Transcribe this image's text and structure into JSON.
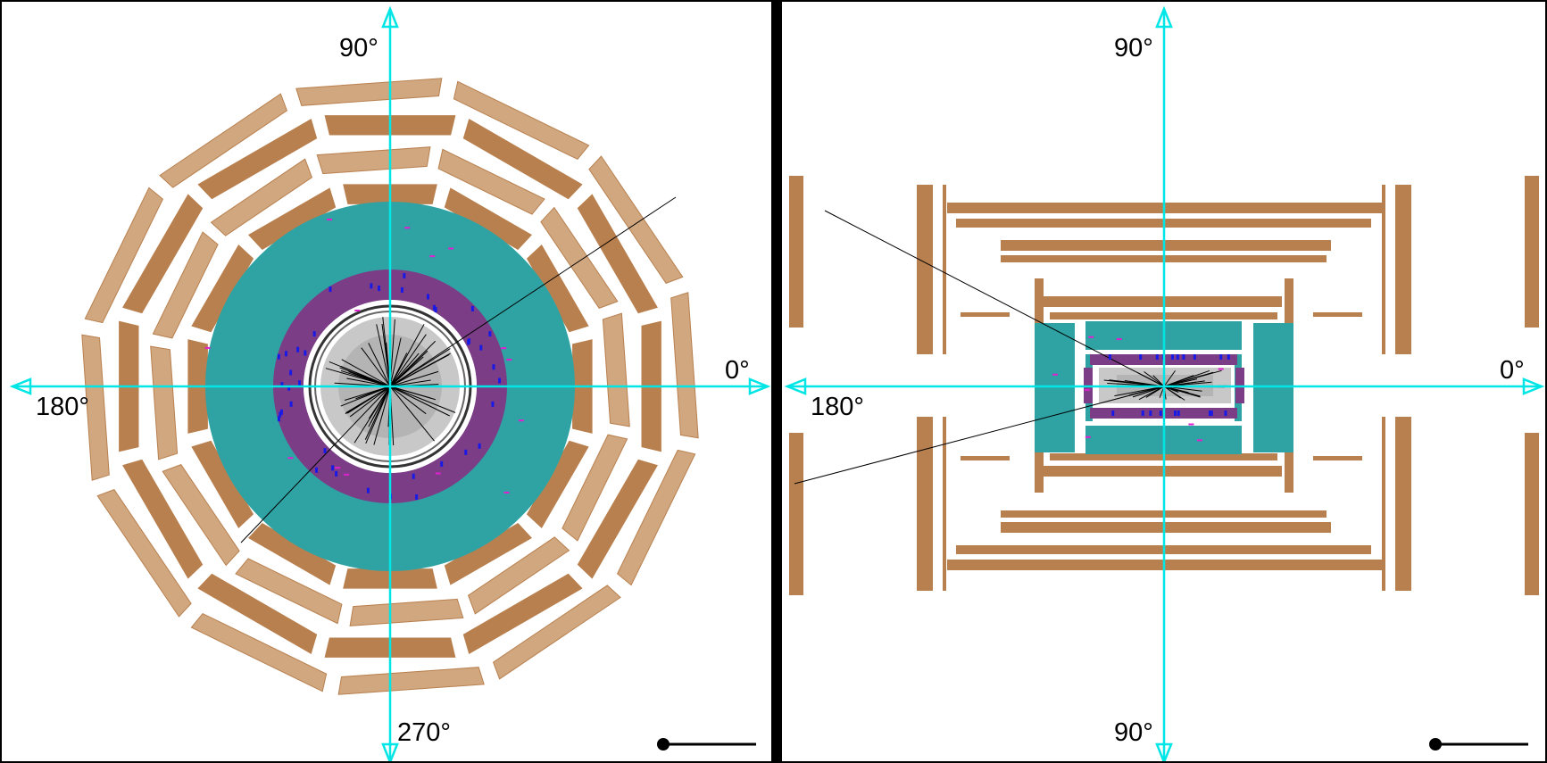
{
  "left_view": {
    "labels": {
      "top": "90°",
      "right": "0°",
      "left": "180°",
      "bottom": "270°"
    }
  },
  "right_view": {
    "labels": {
      "top": "90°",
      "right": "0°",
      "left": "180°",
      "bottom": "90°"
    }
  },
  "colors": {
    "axis": "#00e5e5",
    "muon": "#b9804f",
    "muon_light": "#d0a77f",
    "hcal": "#2fa3a3",
    "ecal": "#7b3d86",
    "tracker": "#c8c8c8",
    "track": "#000000",
    "hit_blue": "#1a1ae6",
    "hit_magenta": "#e020d0"
  },
  "icons": {
    "scale_bar": "scale-bar-icon"
  }
}
